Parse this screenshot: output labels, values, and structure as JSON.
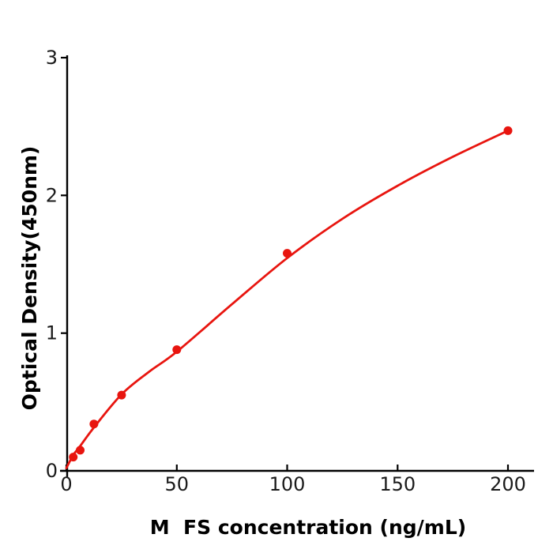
{
  "chart_data": {
    "type": "scatter",
    "title": "",
    "xlabel": "M  FS concentration (ng/mL)",
    "ylabel": "Optical Density(450nm)",
    "x_ticks": [
      "0",
      "50",
      "100",
      "150",
      "200"
    ],
    "x_tick_values": [
      0,
      50,
      100,
      150,
      200
    ],
    "y_ticks": [
      "0",
      "1",
      "2",
      "3"
    ],
    "y_tick_values": [
      0,
      1,
      2,
      3
    ],
    "xlim": [
      0,
      200
    ],
    "ylim": [
      0,
      3
    ],
    "grid": false,
    "legend": "none",
    "series": [
      {
        "name": "standard-points",
        "type": "scatter",
        "x": [
          3.125,
          6.25,
          12.5,
          25,
          50,
          100,
          200
        ],
        "y": [
          0.1,
          0.15,
          0.34,
          0.55,
          0.88,
          1.58,
          2.47
        ],
        "color": "#e8150f",
        "marker_radius": 5.5
      },
      {
        "name": "fitted-curve",
        "type": "line",
        "x": [
          0,
          3.125,
          6.25,
          12.5,
          25,
          37.5,
          50,
          75,
          100,
          125,
          150,
          175,
          200
        ],
        "y": [
          0.02,
          0.115,
          0.18,
          0.315,
          0.555,
          0.72,
          0.865,
          1.21,
          1.545,
          1.83,
          2.07,
          2.28,
          2.47
        ],
        "color": "#e8150f",
        "line_width": 2.8
      }
    ],
    "colors": {
      "series": "#e8150f",
      "axis": "#000000",
      "text": "#1a1a1a"
    }
  }
}
